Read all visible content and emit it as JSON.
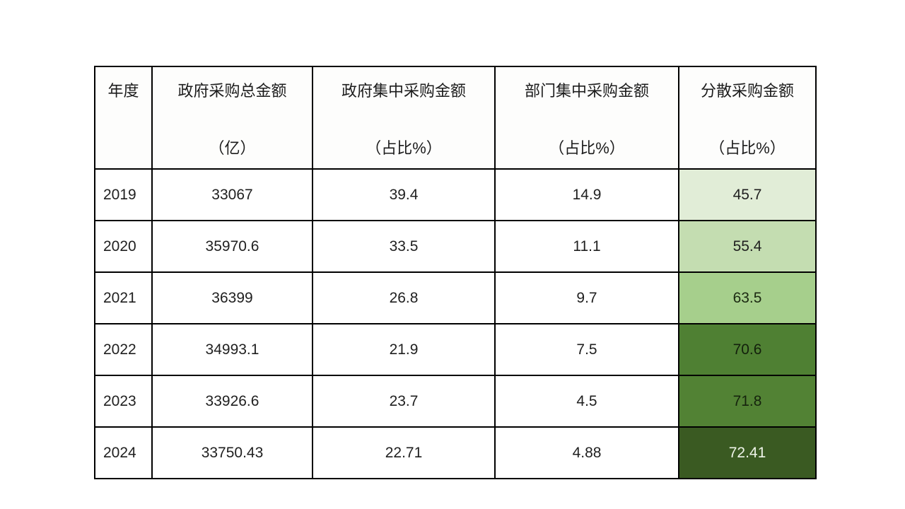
{
  "table": {
    "headers": [
      {
        "line1": "年度",
        "line2": ""
      },
      {
        "line1": "政府采购总金额",
        "line2": "（亿）"
      },
      {
        "line1": "政府集中采购金额",
        "line2": "（占比%）"
      },
      {
        "line1": "部门集中采购金额",
        "line2": "（占比%）"
      },
      {
        "line1": "分散采购金额",
        "line2": "（占比%）"
      }
    ],
    "rows": [
      {
        "year": "2019",
        "total": "33067",
        "gov_centralized": "39.4",
        "dept_centralized": "14.9",
        "decentralized": "45.7",
        "decentralized_bg": "#e1edd7",
        "decentralized_fg": "#1f1f1f"
      },
      {
        "year": "2020",
        "total": "35970.6",
        "gov_centralized": "33.5",
        "dept_centralized": "11.1",
        "decentralized": "55.4",
        "decentralized_bg": "#c4ddb1",
        "decentralized_fg": "#1f1f1f"
      },
      {
        "year": "2021",
        "total": "36399",
        "gov_centralized": "26.8",
        "dept_centralized": "9.7",
        "decentralized": "63.5",
        "decentralized_bg": "#a6cf8c",
        "decentralized_fg": "#1c2a12"
      },
      {
        "year": "2022",
        "total": "34993.1",
        "gov_centralized": "21.9",
        "dept_centralized": "7.5",
        "decentralized": "70.6",
        "decentralized_bg": "#4f8033",
        "decentralized_fg": "#13200c"
      },
      {
        "year": "2023",
        "total": "33926.6",
        "gov_centralized": "23.7",
        "dept_centralized": "4.5",
        "decentralized": "71.8",
        "decentralized_bg": "#528234",
        "decentralized_fg": "#15230d"
      },
      {
        "year": "2024",
        "total": "33750.43",
        "gov_centralized": "22.71",
        "dept_centralized": "4.88",
        "decentralized": "72.41",
        "decentralized_bg": "#3a5a22",
        "decentralized_fg": "#eff4e9"
      }
    ],
    "colors": {
      "border": "#000000",
      "green_scale": [
        "#e1edd7",
        "#c4ddb1",
        "#a6cf8c",
        "#4f8033",
        "#528234",
        "#3a5a22"
      ]
    }
  },
  "chart_data": {
    "type": "table",
    "title": "",
    "columns": [
      "年度",
      "政府采购总金额（亿）",
      "政府集中采购金额（占比%）",
      "部门集中采购金额（占比%）",
      "分散采购金额（占比%）"
    ],
    "rows": [
      [
        "2019",
        33067,
        39.4,
        14.9,
        45.7
      ],
      [
        "2020",
        35970.6,
        33.5,
        11.1,
        55.4
      ],
      [
        "2021",
        36399,
        26.8,
        9.7,
        63.5
      ],
      [
        "2022",
        34993.1,
        21.9,
        7.5,
        70.6
      ],
      [
        "2023",
        33926.6,
        23.7,
        4.5,
        71.8
      ],
      [
        "2024",
        33750.43,
        22.71,
        4.88,
        72.41
      ]
    ],
    "layout_hints": {
      "highlighted_column": "分散采购金额（占比%）",
      "highlight_style": "green shading, darker for higher values",
      "grid": true
    }
  }
}
